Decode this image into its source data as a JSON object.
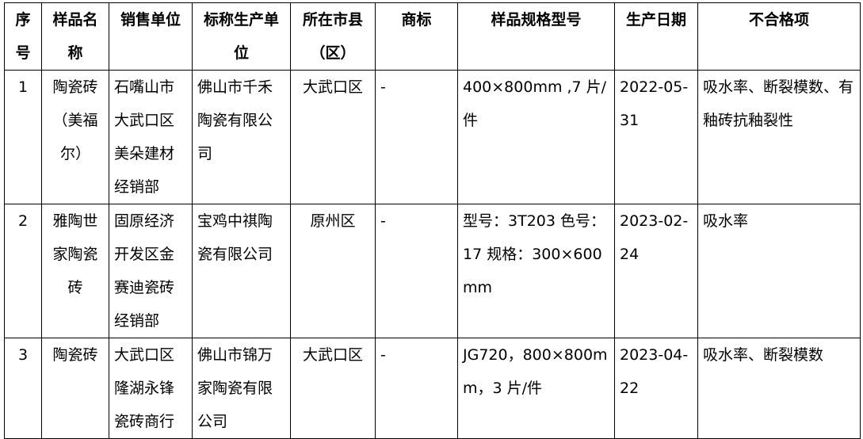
{
  "table": {
    "headers": [
      "序号",
      "样品名称",
      "销售单位",
      "标称生产单位",
      "所在市县（区）",
      "商标",
      "样品规格型号",
      "生产日期",
      "不合格项"
    ],
    "rows": [
      [
        "1",
        "陶瓷砖（美福尔）",
        "石嘴山市大武口区美朵建材经销部",
        "佛山市千禾陶瓷有限公司",
        "大武口区",
        "-",
        "400×800mm ,7 片/件",
        "2022-05-31",
        "吸水率、断裂模数、有釉砖抗釉裂性"
      ],
      [
        "2",
        "雅陶世家陶瓷砖",
        "固原经济开发区金赛迪瓷砖经销部",
        "宝鸡中祺陶瓷有限公司",
        "原州区",
        "-",
        "型号：3T203 色号：17 规格：300×600mm",
        "2023-02-24",
        "吸水率"
      ],
      [
        "3",
        "陶瓷砖",
        "大武口区隆湖永锋瓷砖商行",
        "佛山市锦万家陶瓷有限公司",
        "大武口区",
        "-",
        "JG720，800×800mm，3 片/件",
        "2023-04-22",
        "吸水率、断裂模数"
      ]
    ]
  }
}
